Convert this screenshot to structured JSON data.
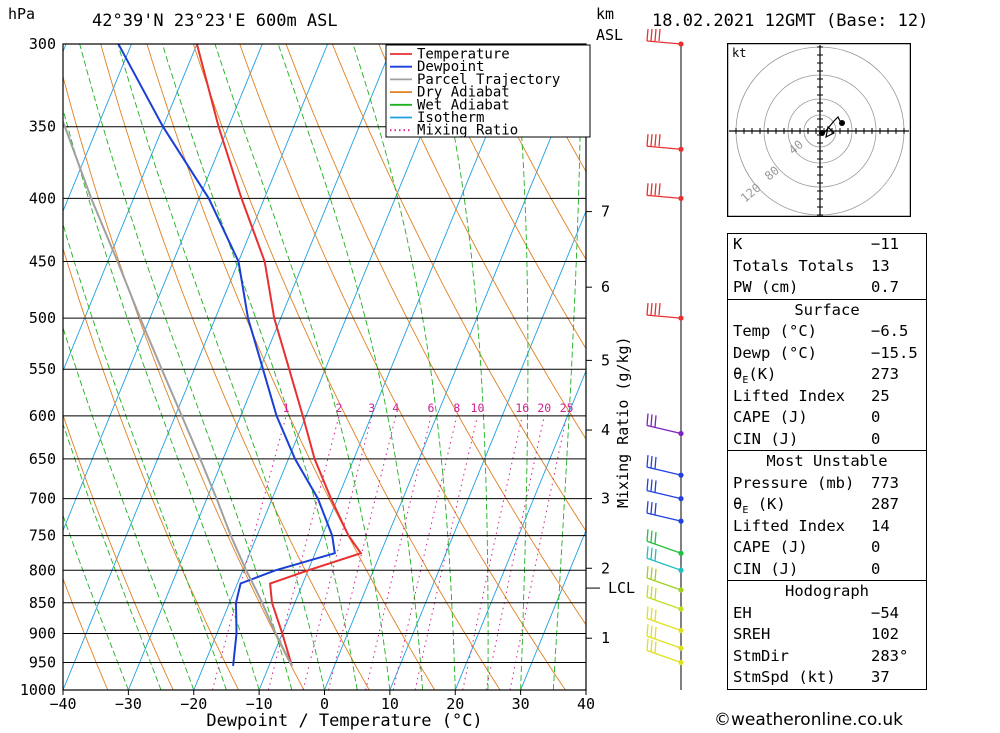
{
  "header": {
    "hpa_label": "hPa",
    "location": "42°39'N  23°23'E  600m  ASL",
    "km_label": "km",
    "asl_label": "ASL",
    "datetime": "18.02.2021  12GMT  (Base: 12)"
  },
  "legend": [
    {
      "label": "Temperature",
      "color": "#e83030",
      "style": "solid"
    },
    {
      "label": "Dewpoint",
      "color": "#1a3fd6",
      "style": "solid"
    },
    {
      "label": "Parcel Trajectory",
      "color": "#a0a0a0",
      "style": "solid"
    },
    {
      "label": "Dry Adiabat",
      "color": "#e08020",
      "style": "solid"
    },
    {
      "label": "Wet Adiabat",
      "color": "#20b020",
      "style": "solid"
    },
    {
      "label": "Isotherm",
      "color": "#20a0e0",
      "style": "solid"
    },
    {
      "label": "Mixing Ratio",
      "color": "#d02090",
      "style": "dotted"
    }
  ],
  "chart_data": {
    "type": "line",
    "subtype": "skew-T log-P diagram",
    "xlabel": "Dewpoint / Temperature (°C)",
    "ylabel": "hPa",
    "xlim": [
      -40,
      40
    ],
    "ylim": [
      1000,
      300
    ],
    "x_ticks": [
      "−40",
      "−30",
      "−20",
      "−10",
      "0",
      "10",
      "20",
      "30",
      "40"
    ],
    "pressure_levels": [
      300,
      350,
      400,
      450,
      500,
      550,
      600,
      650,
      700,
      750,
      800,
      850,
      900,
      950,
      1000
    ],
    "pressure_labels": [
      "300",
      "350",
      "400",
      "450",
      "500",
      "550",
      "600",
      "650",
      "700",
      "750",
      "800",
      "850",
      "900",
      "950",
      "1000"
    ],
    "height_axis": {
      "title": "km ASL",
      "ticks": [
        {
          "label": "1",
          "p": 908
        },
        {
          "label": "2",
          "p": 797
        },
        {
          "label": "3",
          "p": 700
        },
        {
          "label": "4",
          "p": 616
        },
        {
          "label": "5",
          "p": 541
        },
        {
          "label": "6",
          "p": 472
        },
        {
          "label": "7",
          "p": 410
        }
      ],
      "lcl_label": "LCL",
      "lcl_p": 827
    },
    "mixing_ratio_axis": {
      "title": "Mixing Ratio (g/kg)",
      "values": [
        "1",
        "2",
        "3",
        "4",
        "6",
        "8",
        "10",
        "16",
        "20",
        "25"
      ],
      "numbers": [
        1,
        2,
        3,
        4,
        6,
        8,
        10,
        16,
        20,
        25
      ]
    },
    "series": [
      {
        "name": "Temperature",
        "color": "#e83030",
        "points": [
          {
            "p": 956,
            "t": -6.5
          },
          {
            "p": 900,
            "t": -10
          },
          {
            "p": 850,
            "t": -13.5
          },
          {
            "p": 820,
            "t": -15
          },
          {
            "p": 800,
            "t": -10
          },
          {
            "p": 775,
            "t": -3
          },
          {
            "p": 750,
            "t": -6
          },
          {
            "p": 700,
            "t": -11
          },
          {
            "p": 650,
            "t": -16
          },
          {
            "p": 600,
            "t": -20.5
          },
          {
            "p": 550,
            "t": -25.5
          },
          {
            "p": 500,
            "t": -31
          },
          {
            "p": 450,
            "t": -36
          },
          {
            "p": 400,
            "t": -43.5
          },
          {
            "p": 350,
            "t": -51.5
          },
          {
            "p": 300,
            "t": -60
          }
        ]
      },
      {
        "name": "Dewpoint",
        "color": "#1a3fd6",
        "points": [
          {
            "p": 956,
            "t": -15.5
          },
          {
            "p": 900,
            "t": -17
          },
          {
            "p": 850,
            "t": -19
          },
          {
            "p": 820,
            "t": -19.5
          },
          {
            "p": 800,
            "t": -15
          },
          {
            "p": 775,
            "t": -7
          },
          {
            "p": 750,
            "t": -8.5
          },
          {
            "p": 700,
            "t": -13
          },
          {
            "p": 650,
            "t": -19
          },
          {
            "p": 600,
            "t": -24.5
          },
          {
            "p": 550,
            "t": -29.5
          },
          {
            "p": 500,
            "t": -35
          },
          {
            "p": 450,
            "t": -40
          },
          {
            "p": 400,
            "t": -48.5
          },
          {
            "p": 350,
            "t": -60
          },
          {
            "p": 300,
            "t": -72
          }
        ]
      },
      {
        "name": "Parcel Trajectory",
        "color": "#a0a0a0",
        "points": [
          {
            "p": 956,
            "t": -6.5
          },
          {
            "p": 900,
            "t": -11
          },
          {
            "p": 850,
            "t": -15
          },
          {
            "p": 827,
            "t": -17
          },
          {
            "p": 800,
            "t": -19.5
          },
          {
            "p": 750,
            "t": -24
          },
          {
            "p": 700,
            "t": -28.5
          },
          {
            "p": 650,
            "t": -33.5
          },
          {
            "p": 600,
            "t": -39
          },
          {
            "p": 550,
            "t": -45
          },
          {
            "p": 500,
            "t": -51.5
          },
          {
            "p": 450,
            "t": -58.5
          },
          {
            "p": 400,
            "t": -66.5
          },
          {
            "p": 350,
            "t": -75
          },
          {
            "p": 330,
            "t": -79
          }
        ]
      }
    ],
    "wind_barbs": [
      {
        "p": 300,
        "color": "#e83030"
      },
      {
        "p": 365,
        "color": "#e83030"
      },
      {
        "p": 400,
        "color": "#e83030"
      },
      {
        "p": 500,
        "color": "#e83030"
      },
      {
        "p": 620,
        "color": "#8020c0"
      },
      {
        "p": 670,
        "color": "#2040e0"
      },
      {
        "p": 700,
        "color": "#2040e0"
      },
      {
        "p": 730,
        "color": "#2040e0"
      },
      {
        "p": 775,
        "color": "#20c040"
      },
      {
        "p": 800,
        "color": "#20c0c0"
      },
      {
        "p": 830,
        "color": "#a0d020"
      },
      {
        "p": 860,
        "color": "#c0e020"
      },
      {
        "p": 895,
        "color": "#e0e020"
      },
      {
        "p": 925,
        "color": "#e0e020"
      },
      {
        "p": 950,
        "color": "#e0e020"
      }
    ]
  },
  "hodograph": {
    "unit_label": "kt",
    "ring_labels": [
      "40",
      "80",
      "120"
    ]
  },
  "stats": {
    "indices": [
      {
        "k": "K",
        "v": "−11"
      },
      {
        "k": "Totals Totals",
        "v": "13"
      },
      {
        "k": "PW (cm)",
        "v": "0.7"
      }
    ],
    "surface_title": "Surface",
    "surface": [
      {
        "k": "Temp (°C)",
        "v": "−6.5"
      },
      {
        "k": "Dewp (°C)",
        "v": "−15.5"
      },
      {
        "k": "θE(K)",
        "v": "273"
      },
      {
        "k": "Lifted Index",
        "v": "25"
      },
      {
        "k": "CAPE (J)",
        "v": "0"
      },
      {
        "k": "CIN (J)",
        "v": "0"
      }
    ],
    "most_unstable_title": "Most Unstable",
    "most_unstable": [
      {
        "k": "Pressure (mb)",
        "v": "773"
      },
      {
        "k": "θE (K)",
        "v": "287"
      },
      {
        "k": "Lifted Index",
        "v": "14"
      },
      {
        "k": "CAPE (J)",
        "v": "0"
      },
      {
        "k": "CIN (J)",
        "v": "0"
      }
    ],
    "hodograph_title": "Hodograph",
    "hodograph": [
      {
        "k": "EH",
        "v": "−54"
      },
      {
        "k": "SREH",
        "v": "102"
      },
      {
        "k": "StmDir",
        "v": "283°"
      },
      {
        "k": "StmSpd (kt)",
        "v": "37"
      }
    ]
  },
  "footer": {
    "copyright": "©weatheronline.co.uk"
  }
}
